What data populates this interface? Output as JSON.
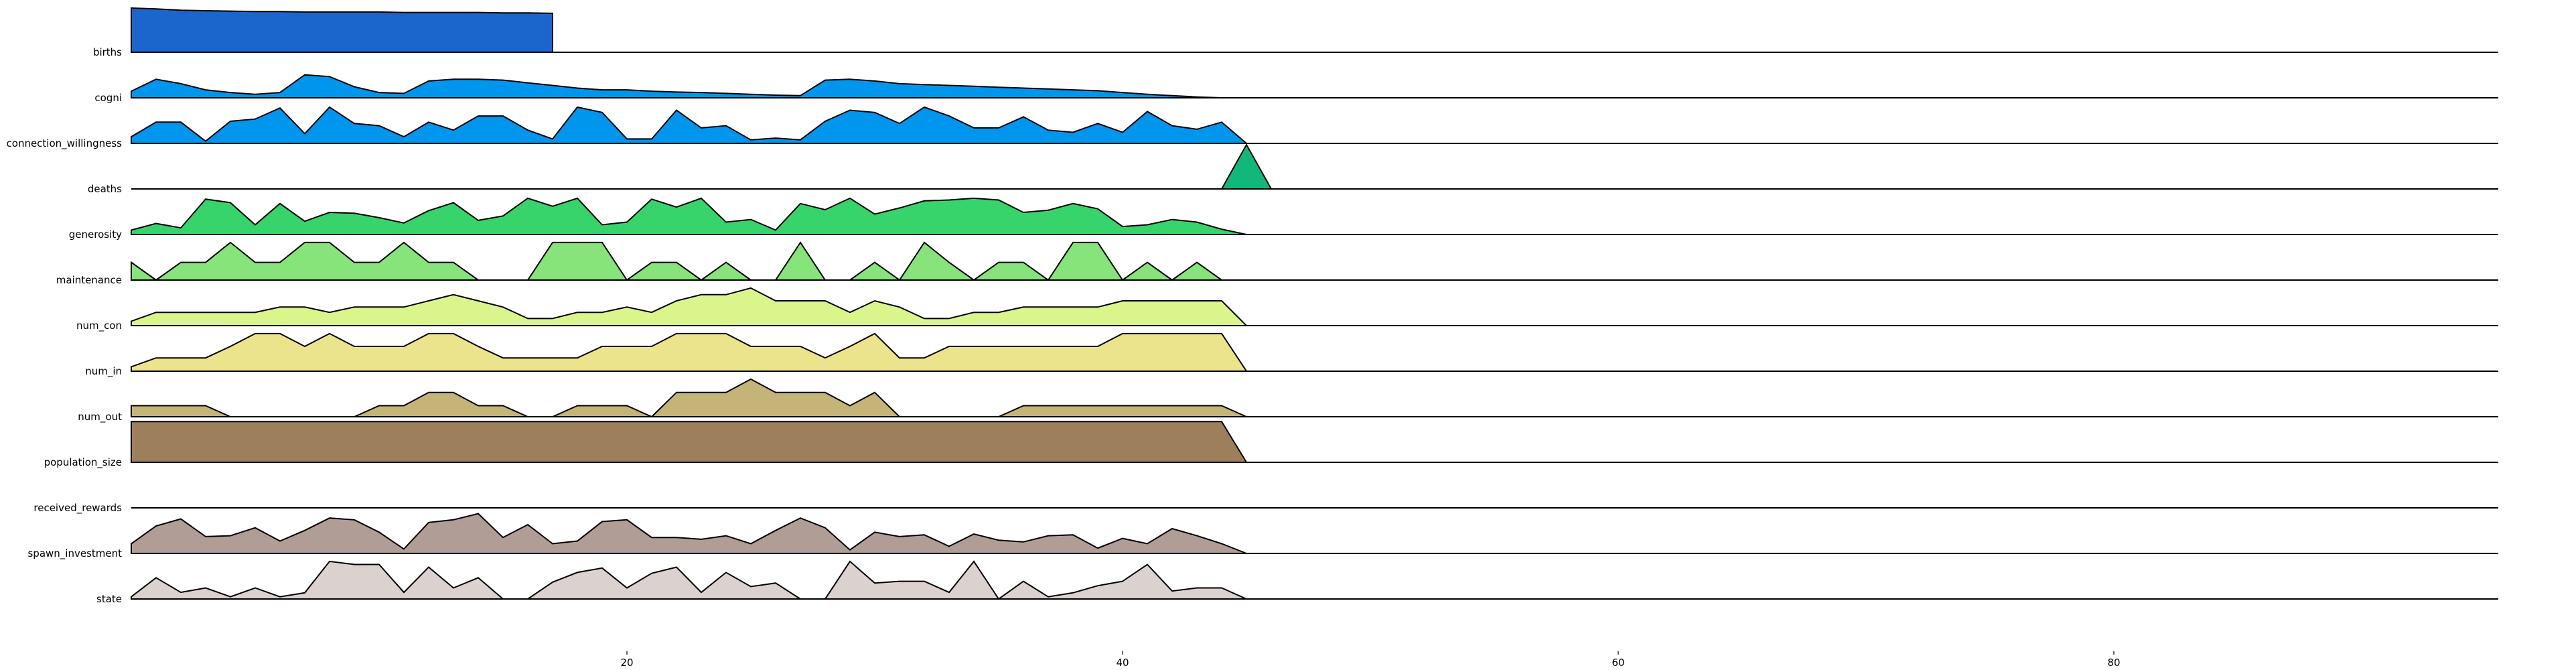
{
  "chart_data": {
    "type": "area",
    "layout": "ridgeline",
    "title": "",
    "xlabel": "",
    "ylabel": "",
    "xlim": [
      0,
      95
    ],
    "xticks": [
      20,
      40,
      60,
      80
    ],
    "xtick_labels": [
      "20",
      "40",
      "60",
      "80"
    ],
    "grid": false,
    "legend": "none",
    "series": [
      {
        "name": "births",
        "color": "#1a66cc",
        "values": [
          1.0,
          0.98,
          0.95,
          0.94,
          0.93,
          0.92,
          0.92,
          0.91,
          0.91,
          0.91,
          0.91,
          0.9,
          0.9,
          0.9,
          0.9,
          0.89,
          0.89,
          0.88
        ]
      },
      {
        "name": "cogni",
        "color": "#0096ee",
        "values": [
          0.15,
          0.42,
          0.32,
          0.18,
          0.12,
          0.08,
          0.12,
          0.52,
          0.48,
          0.25,
          0.12,
          0.1,
          0.38,
          0.42,
          0.42,
          0.4,
          0.34,
          0.28,
          0.22,
          0.18,
          0.18,
          0.15,
          0.13,
          0.12,
          0.1,
          0.08,
          0.06,
          0.05,
          0.4,
          0.42,
          0.38,
          0.32,
          0.3,
          0.28,
          0.26,
          0.24,
          0.22,
          0.2,
          0.18,
          0.16,
          0.12,
          0.08,
          0.05,
          0.02,
          0.0,
          0.0
        ]
      },
      {
        "name": "connection_willingness",
        "color": "#0096ee",
        "values": [
          0.15,
          0.48,
          0.48,
          0.05,
          0.5,
          0.55,
          0.8,
          0.22,
          0.82,
          0.45,
          0.4,
          0.15,
          0.48,
          0.3,
          0.62,
          0.62,
          0.3,
          0.1,
          0.82,
          0.7,
          0.1,
          0.1,
          0.75,
          0.35,
          0.4,
          0.08,
          0.12,
          0.08,
          0.5,
          0.75,
          0.7,
          0.45,
          0.82,
          0.62,
          0.35,
          0.35,
          0.6,
          0.3,
          0.25,
          0.45,
          0.25,
          0.72,
          0.4,
          0.32,
          0.48,
          0.0
        ]
      },
      {
        "name": "deaths",
        "color": "#11b87a",
        "values": [
          0,
          0,
          0,
          0,
          0,
          0,
          0,
          0,
          0,
          0,
          0,
          0,
          0,
          0,
          0,
          0,
          0,
          0,
          0,
          0,
          0,
          0,
          0,
          0,
          0,
          0,
          0,
          0,
          0,
          0,
          0,
          0,
          0,
          0,
          0,
          0,
          0,
          0,
          0,
          0,
          0,
          0,
          0,
          0,
          0,
          1.0,
          0
        ]
      },
      {
        "name": "generosity",
        "color": "#37d46c",
        "values": [
          0.1,
          0.25,
          0.15,
          0.8,
          0.72,
          0.22,
          0.7,
          0.3,
          0.5,
          0.48,
          0.38,
          0.26,
          0.54,
          0.72,
          0.32,
          0.42,
          0.82,
          0.64,
          0.82,
          0.22,
          0.28,
          0.8,
          0.62,
          0.82,
          0.28,
          0.34,
          0.1,
          0.7,
          0.56,
          0.82,
          0.46,
          0.6,
          0.76,
          0.78,
          0.82,
          0.78,
          0.5,
          0.55,
          0.7,
          0.58,
          0.18,
          0.22,
          0.34,
          0.28,
          0.12,
          0.0
        ]
      },
      {
        "name": "maintenance",
        "color": "#86e47a",
        "values": [
          0.4,
          0.0,
          0.4,
          0.4,
          0.85,
          0.4,
          0.4,
          0.85,
          0.85,
          0.4,
          0.4,
          0.85,
          0.4,
          0.4,
          0.0,
          0.0,
          0.0,
          0.85,
          0.85,
          0.85,
          0.0,
          0.4,
          0.4,
          0.0,
          0.4,
          0.0,
          0.0,
          0.85,
          0.0,
          0.0,
          0.4,
          0.0,
          0.85,
          0.4,
          0.0,
          0.4,
          0.4,
          0.0,
          0.85,
          0.85,
          0.0,
          0.4,
          0.0,
          0.4,
          0.0,
          0.0
        ]
      },
      {
        "name": "num_con",
        "color": "#daf58c",
        "values": [
          0.1,
          0.3,
          0.3,
          0.3,
          0.3,
          0.3,
          0.42,
          0.42,
          0.3,
          0.42,
          0.42,
          0.42,
          0.56,
          0.7,
          0.56,
          0.42,
          0.16,
          0.16,
          0.3,
          0.3,
          0.42,
          0.3,
          0.56,
          0.7,
          0.7,
          0.85,
          0.56,
          0.56,
          0.56,
          0.3,
          0.56,
          0.42,
          0.16,
          0.16,
          0.3,
          0.3,
          0.42,
          0.42,
          0.42,
          0.42,
          0.56,
          0.56,
          0.56,
          0.56,
          0.56,
          0.0
        ]
      },
      {
        "name": "num_in",
        "color": "#ebe48c",
        "values": [
          0.1,
          0.3,
          0.3,
          0.3,
          0.56,
          0.85,
          0.85,
          0.56,
          0.85,
          0.56,
          0.56,
          0.56,
          0.85,
          0.85,
          0.56,
          0.3,
          0.3,
          0.3,
          0.3,
          0.56,
          0.56,
          0.56,
          0.85,
          0.85,
          0.85,
          0.56,
          0.56,
          0.56,
          0.3,
          0.56,
          0.85,
          0.3,
          0.3,
          0.56,
          0.56,
          0.56,
          0.56,
          0.56,
          0.56,
          0.56,
          0.85,
          0.85,
          0.85,
          0.85,
          0.85,
          0.0
        ]
      },
      {
        "name": "num_out",
        "color": "#c4b478",
        "values": [
          0.25,
          0.25,
          0.25,
          0.25,
          0.0,
          0.0,
          0.0,
          0.0,
          0.0,
          0.0,
          0.25,
          0.25,
          0.55,
          0.55,
          0.25,
          0.25,
          0.0,
          0.0,
          0.25,
          0.25,
          0.25,
          0.0,
          0.55,
          0.55,
          0.55,
          0.85,
          0.55,
          0.55,
          0.55,
          0.25,
          0.55,
          0.0,
          0.0,
          0.0,
          0.0,
          0.0,
          0.25,
          0.25,
          0.25,
          0.25,
          0.25,
          0.25,
          0.25,
          0.25,
          0.25,
          0.0
        ]
      },
      {
        "name": "population_size",
        "color": "#9e7f5c",
        "values": [
          0.92,
          0.92,
          0.92,
          0.92,
          0.92,
          0.92,
          0.92,
          0.92,
          0.92,
          0.92,
          0.92,
          0.92,
          0.92,
          0.92,
          0.92,
          0.92,
          0.92,
          0.92,
          0.92,
          0.92,
          0.92,
          0.92,
          0.92,
          0.92,
          0.92,
          0.92,
          0.92,
          0.92,
          0.92,
          0.92,
          0.92,
          0.92,
          0.92,
          0.92,
          0.92,
          0.92,
          0.92,
          0.92,
          0.92,
          0.92,
          0.92,
          0.92,
          0.92,
          0.92,
          0.92,
          0.0
        ]
      },
      {
        "name": "received_rewards",
        "color": "#b09e96",
        "values": []
      },
      {
        "name": "spawn_investment",
        "color": "#b09e96",
        "values": [
          0.22,
          0.62,
          0.78,
          0.38,
          0.4,
          0.58,
          0.28,
          0.52,
          0.8,
          0.76,
          0.48,
          0.1,
          0.7,
          0.76,
          0.9,
          0.36,
          0.65,
          0.22,
          0.28,
          0.72,
          0.76,
          0.36,
          0.36,
          0.32,
          0.4,
          0.22,
          0.52,
          0.8,
          0.58,
          0.08,
          0.48,
          0.38,
          0.42,
          0.16,
          0.44,
          0.3,
          0.26,
          0.4,
          0.42,
          0.12,
          0.34,
          0.22,
          0.56,
          0.4,
          0.22,
          0.0
        ]
      },
      {
        "name": "state",
        "color": "#dbd1cf",
        "values": [
          0.05,
          0.48,
          0.15,
          0.25,
          0.05,
          0.25,
          0.05,
          0.14,
          0.85,
          0.78,
          0.78,
          0.15,
          0.72,
          0.25,
          0.48,
          0.0,
          0.0,
          0.38,
          0.6,
          0.7,
          0.25,
          0.58,
          0.72,
          0.15,
          0.6,
          0.28,
          0.36,
          0.0,
          0.0,
          0.85,
          0.36,
          0.4,
          0.4,
          0.15,
          0.85,
          0.0,
          0.4,
          0.05,
          0.14,
          0.3,
          0.4,
          0.78,
          0.18,
          0.25,
          0.25,
          0.0
        ]
      }
    ]
  }
}
